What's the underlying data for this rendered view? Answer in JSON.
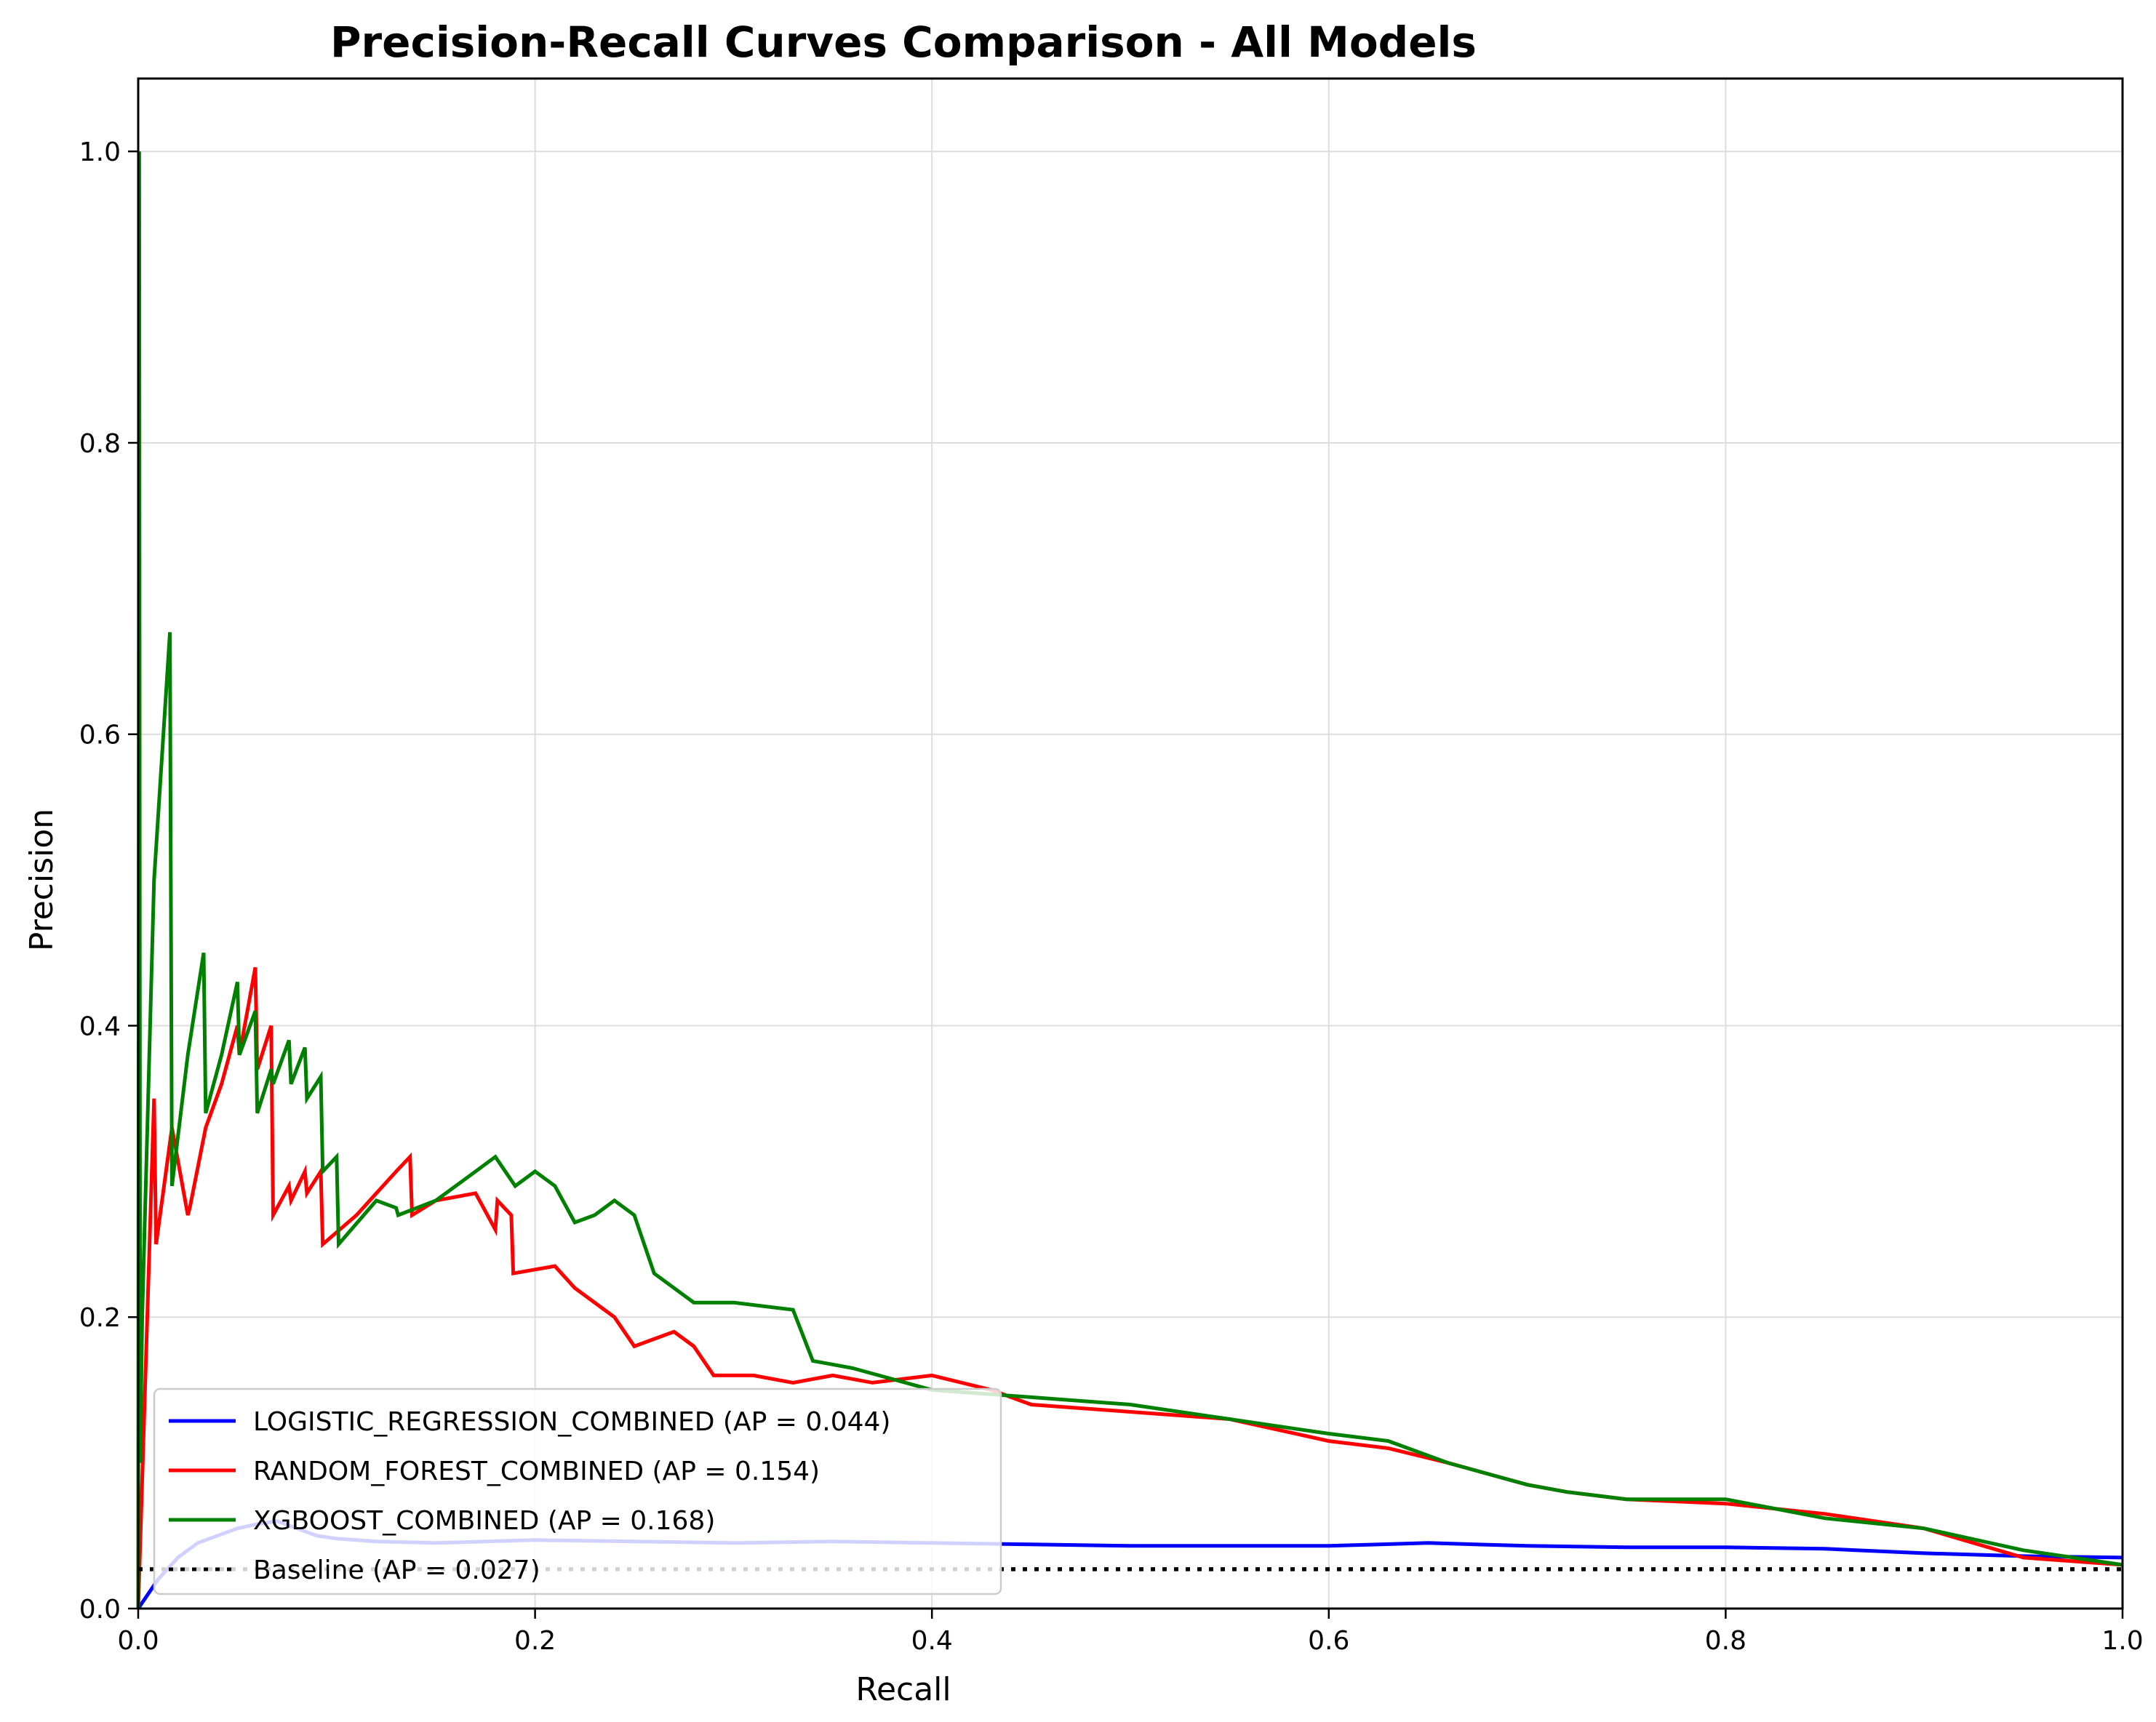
{
  "chart_data": {
    "type": "line",
    "title": "Precision-Recall Curves Comparison - All Models",
    "xlabel": "Recall",
    "ylabel": "Precision",
    "xlim": [
      0,
      1
    ],
    "ylim": [
      0,
      1.05
    ],
    "xticks": [
      0,
      0.2,
      0.4,
      0.6,
      0.8,
      1.0
    ],
    "xtick_labels": [
      "0.0",
      "0.2",
      "0.4",
      "0.6",
      "0.8",
      "1.0"
    ],
    "yticks": [
      0,
      0.2,
      0.4,
      0.6,
      0.8,
      1.0
    ],
    "ytick_labels": [
      "0.0",
      "0.2",
      "0.4",
      "0.6",
      "0.8",
      "1.0"
    ],
    "grid": true,
    "legend_position": "lower-left",
    "series": [
      {
        "name": "LOGISTIC_REGRESSION_COMBINED (AP = 0.044)",
        "color": "#0000ff",
        "style": "solid",
        "x": [
          0,
          0.01,
          0.02,
          0.03,
          0.04,
          0.05,
          0.06,
          0.07,
          0.08,
          0.09,
          0.1,
          0.12,
          0.15,
          0.2,
          0.25,
          0.3,
          0.35,
          0.4,
          0.45,
          0.5,
          0.55,
          0.6,
          0.65,
          0.7,
          0.75,
          0.8,
          0.85,
          0.9,
          0.95,
          1.0
        ],
        "y": [
          0,
          0.02,
          0.035,
          0.045,
          0.05,
          0.055,
          0.058,
          0.06,
          0.055,
          0.05,
          0.048,
          0.046,
          0.045,
          0.047,
          0.046,
          0.045,
          0.046,
          0.045,
          0.044,
          0.043,
          0.043,
          0.043,
          0.045,
          0.043,
          0.042,
          0.042,
          0.041,
          0.038,
          0.036,
          0.035
        ]
      },
      {
        "name": "RANDOM_FOREST_COMBINED (AP = 0.154)",
        "color": "#ff0000",
        "style": "solid",
        "x": [
          0,
          0.008,
          0.009,
          0.017,
          0.025,
          0.026,
          0.034,
          0.042,
          0.05,
          0.051,
          0.059,
          0.06,
          0.067,
          0.068,
          0.076,
          0.077,
          0.084,
          0.085,
          0.092,
          0.093,
          0.11,
          0.13,
          0.137,
          0.138,
          0.15,
          0.17,
          0.18,
          0.181,
          0.188,
          0.189,
          0.21,
          0.22,
          0.23,
          0.24,
          0.25,
          0.27,
          0.28,
          0.29,
          0.31,
          0.33,
          0.35,
          0.37,
          0.4,
          0.43,
          0.45,
          0.5,
          0.55,
          0.6,
          0.63,
          0.66,
          0.7,
          0.72,
          0.75,
          0.8,
          0.85,
          0.9,
          0.95,
          1.0
        ],
        "y": [
          0,
          0.35,
          0.25,
          0.33,
          0.27,
          0.275,
          0.33,
          0.36,
          0.4,
          0.38,
          0.44,
          0.37,
          0.4,
          0.27,
          0.29,
          0.28,
          0.3,
          0.285,
          0.3,
          0.25,
          0.27,
          0.3,
          0.31,
          0.27,
          0.28,
          0.285,
          0.26,
          0.28,
          0.27,
          0.23,
          0.235,
          0.22,
          0.21,
          0.2,
          0.18,
          0.19,
          0.18,
          0.16,
          0.16,
          0.155,
          0.16,
          0.155,
          0.16,
          0.15,
          0.14,
          0.135,
          0.13,
          0.115,
          0.11,
          0.1,
          0.085,
          0.08,
          0.075,
          0.072,
          0.065,
          0.055,
          0.035,
          0.03
        ]
      },
      {
        "name": "XGBOOST_COMBINED (AP = 0.168)",
        "color": "#008000",
        "style": "solid",
        "x": [
          0,
          0.0005,
          0.001,
          0.002,
          0.008,
          0.016,
          0.017,
          0.025,
          0.033,
          0.034,
          0.042,
          0.05,
          0.051,
          0.059,
          0.06,
          0.067,
          0.068,
          0.076,
          0.077,
          0.084,
          0.085,
          0.092,
          0.093,
          0.1,
          0.101,
          0.12,
          0.13,
          0.131,
          0.15,
          0.17,
          0.18,
          0.19,
          0.2,
          0.21,
          0.22,
          0.23,
          0.24,
          0.25,
          0.26,
          0.28,
          0.3,
          0.33,
          0.34,
          0.36,
          0.4,
          0.45,
          0.5,
          0.55,
          0.6,
          0.63,
          0.66,
          0.7,
          0.72,
          0.75,
          0.8,
          0.85,
          0.9,
          0.95,
          1.0
        ],
        "y": [
          0,
          1.0,
          0.1,
          0.2,
          0.5,
          0.67,
          0.29,
          0.38,
          0.45,
          0.34,
          0.38,
          0.43,
          0.38,
          0.41,
          0.34,
          0.37,
          0.36,
          0.39,
          0.36,
          0.385,
          0.35,
          0.365,
          0.3,
          0.31,
          0.25,
          0.28,
          0.275,
          0.27,
          0.28,
          0.3,
          0.31,
          0.29,
          0.3,
          0.29,
          0.265,
          0.27,
          0.28,
          0.27,
          0.23,
          0.21,
          0.21,
          0.205,
          0.17,
          0.165,
          0.15,
          0.145,
          0.14,
          0.13,
          0.12,
          0.115,
          0.1,
          0.085,
          0.08,
          0.075,
          0.075,
          0.062,
          0.055,
          0.04,
          0.03
        ]
      },
      {
        "name": "Baseline (AP = 0.027)",
        "color": "#000000",
        "style": "dotted",
        "x": [
          0,
          1.0
        ],
        "y": [
          0.027,
          0.027
        ]
      }
    ]
  }
}
